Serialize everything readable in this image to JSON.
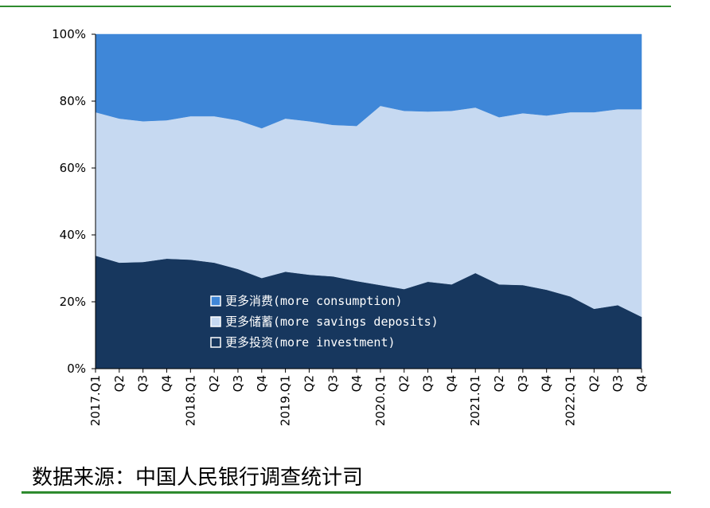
{
  "chart_data": {
    "type": "stacked_area",
    "categories": [
      "2017.Q1",
      "Q2",
      "Q3",
      "Q4",
      "2018.Q1",
      "Q2",
      "Q3",
      "Q4",
      "2019.Q1",
      "Q2",
      "Q3",
      "Q4",
      "2020.Q1",
      "Q2",
      "Q3",
      "Q4",
      "2021.Q1",
      "Q2",
      "Q3",
      "Q4",
      "2022.Q1",
      "Q2",
      "Q3",
      "Q4"
    ],
    "series": [
      {
        "name": "更多投资(more investment)",
        "color": "#17375e",
        "values": [
          33.8,
          31.7,
          31.9,
          32.9,
          32.6,
          31.7,
          29.8,
          27.1,
          29.0,
          28.1,
          27.6,
          26.2,
          25.0,
          23.8,
          26.0,
          25.2,
          28.6,
          25.2,
          25.0,
          23.6,
          21.6,
          17.9,
          19.0,
          15.5
        ]
      },
      {
        "name": "更多储蓄(more savings deposits)",
        "color": "#c6d9f1",
        "values": [
          42.9,
          43.1,
          42.1,
          41.4,
          42.9,
          43.8,
          44.5,
          44.8,
          45.8,
          45.9,
          45.3,
          46.4,
          53.6,
          53.3,
          50.9,
          51.9,
          49.5,
          50.0,
          51.4,
          52.1,
          55.1,
          58.8,
          58.6,
          62.1
        ]
      },
      {
        "name": "更多消费(more consumption)",
        "color": "#3f87d8",
        "values": [
          23.3,
          25.2,
          26.0,
          25.7,
          24.5,
          24.5,
          25.7,
          28.1,
          25.2,
          26.0,
          27.1,
          27.4,
          21.4,
          22.9,
          23.1,
          22.9,
          21.9,
          24.8,
          23.6,
          24.3,
          23.3,
          23.3,
          22.4,
          22.4
        ]
      }
    ],
    "ylim": [
      0,
      100
    ],
    "yticks": [
      {
        "value": 0,
        "label": "0%"
      },
      {
        "value": 20,
        "label": "20%"
      },
      {
        "value": 40,
        "label": "40%"
      },
      {
        "value": 60,
        "label": "60%"
      },
      {
        "value": 80,
        "label": "80%"
      },
      {
        "value": 100,
        "label": "100%"
      }
    ],
    "source": "数据来源：中国人民银行调查统计司"
  }
}
